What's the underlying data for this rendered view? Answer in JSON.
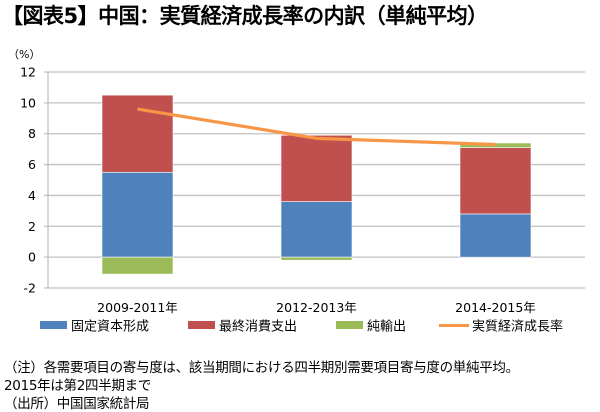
{
  "title": "【図表5】中国：実質経済成長率の内訳（単純平均）",
  "chart_data": {
    "type": "bar",
    "stacked": true,
    "title": "【図表5】中国：実質経済成長率の内訳（単純平均）",
    "ylabel": "（%）",
    "xlabel": "",
    "ylim": [
      -2,
      12
    ],
    "yticks": [
      -2,
      0,
      2,
      4,
      6,
      8,
      10,
      12
    ],
    "grid": true,
    "legend_position": "bottom",
    "categories": [
      "2009-2011年",
      "2012-2013年",
      "2014-2015年"
    ],
    "series": [
      {
        "name": "固定資本形成",
        "kind": "bar",
        "color": "#4F81BD",
        "values": [
          5.5,
          3.6,
          2.8
        ]
      },
      {
        "name": "最終消費支出",
        "kind": "bar",
        "color": "#C0504D",
        "values": [
          5.0,
          4.3,
          4.3
        ]
      },
      {
        "name": "純輸出",
        "kind": "bar",
        "color": "#9BBB59",
        "values": [
          -1.1,
          -0.2,
          0.3
        ]
      },
      {
        "name": "実質経済成長率",
        "kind": "line",
        "color": "#F79646",
        "values": [
          9.6,
          7.7,
          7.3
        ]
      }
    ]
  },
  "notes": [
    "（注）各需要項目の寄与度は、該当期間における四半期別需要項目寄与度の単純平均。",
    "2015年は第2四半期まで",
    "（出所）中国国家統計局"
  ]
}
